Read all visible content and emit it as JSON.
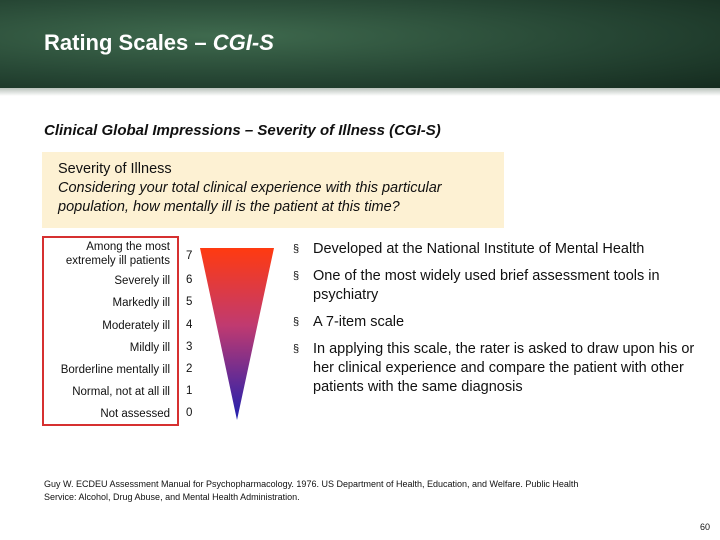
{
  "header": {
    "title_main": "Rating Scales – ",
    "title_emph": "CGI-S"
  },
  "subtitle": "Clinical Global Impressions – Severity of Illness (CGI-S)",
  "question": {
    "heading": "Severity of Illness",
    "text": "Considering your total clinical experience with this particular population, how mentally ill is the patient at this time?"
  },
  "scale": [
    {
      "label_line1": "Among the most",
      "label_line2": "extremely ill patients",
      "score": "7"
    },
    {
      "label_line1": "Severely ill",
      "label_line2": "",
      "score": "6"
    },
    {
      "label_line1": "Markedly ill",
      "label_line2": "",
      "score": "5"
    },
    {
      "label_line1": "Moderately ill",
      "label_line2": "",
      "score": "4"
    },
    {
      "label_line1": "Mildly ill",
      "label_line2": "",
      "score": "3"
    },
    {
      "label_line1": "Borderline mentally ill",
      "label_line2": "",
      "score": "2"
    },
    {
      "label_line1": "Normal, not at all ill",
      "label_line2": "",
      "score": "1"
    },
    {
      "label_line1": "Not assessed",
      "label_line2": "",
      "score": "0"
    }
  ],
  "colors": {
    "scale_border": "#d63030",
    "gradient_top": "#ff3a10",
    "gradient_mid": "#c03a70",
    "gradient_bottom": "#2020b0"
  },
  "bullets": [
    "Developed at the National Institute of Mental Health",
    "One of the most widely used brief assessment tools in psychiatry",
    "A 7-item scale",
    "In applying this scale, the rater is asked to draw upon his or her clinical experience and compare the patient with other patients with the same diagnosis"
  ],
  "bullet_symbol": "§",
  "citation": "Guy W. ECDEU Assessment Manual for Psychopharmacology. 1976. US Department of Health, Education, and Welfare. Public Health Service: Alcohol, Drug Abuse, and Mental Health Administration.",
  "page_number": "60"
}
